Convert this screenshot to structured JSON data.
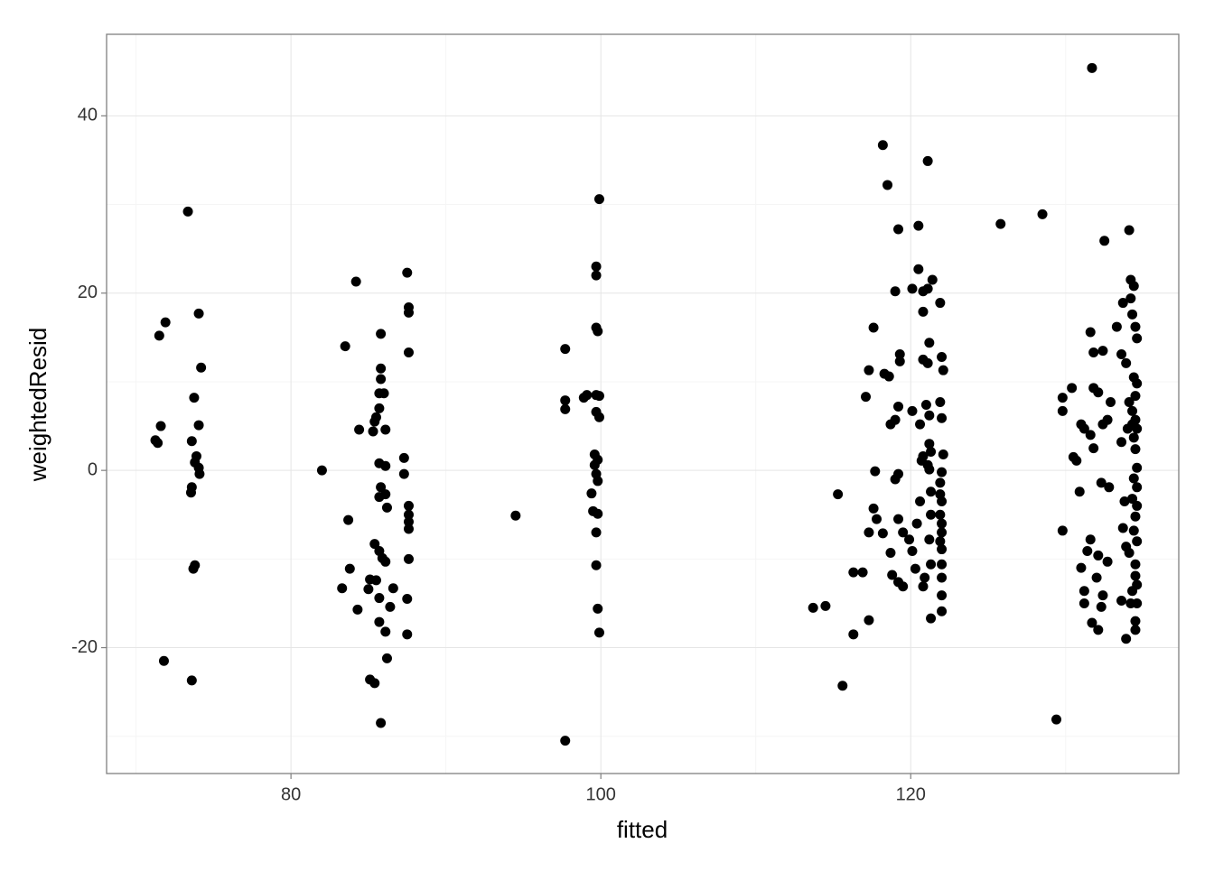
{
  "chart_data": {
    "type": "scatter",
    "x_label": "fitted",
    "y_label": "weightedResid",
    "xlim": [
      68.1,
      137.3
    ],
    "ylim": [
      -34.2,
      49.2
    ],
    "xticks": [
      80,
      100,
      120
    ],
    "yticks": [
      -20,
      0,
      20,
      40
    ],
    "x_minor_ticks": [
      70,
      90,
      110,
      130
    ],
    "y_minor_ticks": [
      -30,
      -10,
      10,
      30
    ],
    "grid": true,
    "color": "#000000",
    "x": [
      71.5,
      71.9,
      71.25,
      71.4,
      71.6,
      73.35,
      73.6,
      71.8,
      74.05,
      74.2,
      73.75,
      74.05,
      73.6,
      73.9,
      73.8,
      74.05,
      74.1,
      73.6,
      73.55,
      73.8,
      73.7,
      82.0,
      84.2,
      83.5,
      84.4,
      83.7,
      83.8,
      83.3,
      84.3,
      85.0,
      85.1,
      85.8,
      85.8,
      85.8,
      85.7,
      86.0,
      85.7,
      85.5,
      85.4,
      85.3,
      86.1,
      85.7,
      86.1,
      85.8,
      86.1,
      85.7,
      86.2,
      85.4,
      85.7,
      85.9,
      86.1,
      85.5,
      85.7,
      85.7,
      86.4,
      86.6,
      86.1,
      86.2,
      85.1,
      85.4,
      85.8,
      87.5,
      87.6,
      87.6,
      87.6,
      87.3,
      87.3,
      87.6,
      87.6,
      87.6,
      87.6,
      87.6,
      87.5,
      87.5,
      94.5,
      99.9,
      99.7,
      99.7,
      97.7,
      99.7,
      99.8,
      97.7,
      97.7,
      98.9,
      99.1,
      99.7,
      99.9,
      99.7,
      99.9,
      99.6,
      99.8,
      99.6,
      99.7,
      99.8,
      99.4,
      99.5,
      99.8,
      99.7,
      99.7,
      99.8,
      99.9,
      97.7,
      113.7,
      114.5,
      115.3,
      115.6,
      116.3,
      116.9,
      116.3,
      117.3,
      117.1,
      117.3,
      117.6,
      118.2,
      118.5,
      119.2,
      118.3,
      118.6,
      119.0,
      117.7,
      117.6,
      117.8,
      117.3,
      118.2,
      118.7,
      118.8,
      118.7,
      119.0,
      119.2,
      119.3,
      119.3,
      119.0,
      119.2,
      119.2,
      119.2,
      119.5,
      119.5,
      119.9,
      120.1,
      120.1,
      120.5,
      120.5,
      120.8,
      120.8,
      120.6,
      120.8,
      120.7,
      120.6,
      120.4,
      120.1,
      120.3,
      120.9,
      120.8,
      121.1,
      121.4,
      121.1,
      121.2,
      120.8,
      121.1,
      121.0,
      121.2,
      121.2,
      121.3,
      121.1,
      121.2,
      121.3,
      121.3,
      121.2,
      121.3,
      121.3,
      121.9,
      122.0,
      122.1,
      121.9,
      122.0,
      122.1,
      122.0,
      121.9,
      122.0,
      121.9,
      122.0,
      122.0,
      121.9,
      122.0,
      122.0,
      122.0,
      122.0,
      122.0,
      121.9,
      125.8,
      128.5,
      129.4,
      129.8,
      129.8,
      129.8,
      130.4,
      130.5,
      130.7,
      131.0,
      131.2,
      130.9,
      131.0,
      131.2,
      131.2,
      131.7,
      131.6,
      131.8,
      131.8,
      132.1,
      131.6,
      131.8,
      131.6,
      131.4,
      132.1,
      132.0,
      131.7,
      132.1,
      132.5,
      132.4,
      132.3,
      132.7,
      132.8,
      132.9,
      132.7,
      132.4,
      132.3,
      133.7,
      133.6,
      133.9,
      133.6,
      133.8,
      133.7,
      133.9,
      133.6,
      133.9,
      134.1,
      134.2,
      134.2,
      134.4,
      134.3,
      134.5,
      134.6,
      134.4,
      134.6,
      134.5,
      134.1,
      134.3,
      134.5,
      134.3,
      134.6,
      134.4,
      134.5,
      134.6,
      134.4,
      134.6,
      134.3,
      134.6,
      134.5,
      134.4,
      134.6,
      134.1,
      134.5,
      134.5,
      134.6,
      134.3,
      134.6,
      134.2,
      134.5,
      134.5,
      133.3,
      132.4,
      134.0
    ],
    "y": [
      15.2,
      16.7,
      3.4,
      3.1,
      5.0,
      29.2,
      -23.7,
      -21.5,
      17.7,
      11.6,
      8.2,
      5.1,
      3.3,
      1.6,
      0.9,
      0.3,
      -0.4,
      -1.9,
      -2.5,
      -10.7,
      -11.1,
      0.0,
      21.3,
      14.0,
      4.6,
      -5.6,
      -11.1,
      -13.3,
      -15.7,
      -13.4,
      -12.3,
      15.4,
      11.5,
      10.3,
      8.7,
      8.7,
      7.0,
      6.0,
      5.5,
      4.4,
      4.6,
      0.8,
      0.5,
      -1.9,
      -2.7,
      -3.0,
      -4.2,
      -8.3,
      -9.1,
      -9.9,
      -10.3,
      -12.4,
      -14.4,
      -17.1,
      -15.4,
      -13.3,
      -18.2,
      -21.2,
      -23.6,
      -24.0,
      -28.5,
      22.3,
      18.4,
      17.8,
      13.3,
      1.4,
      -0.4,
      -4.0,
      -5.0,
      -5.8,
      -6.6,
      -10.0,
      -14.5,
      -18.5,
      -5.1,
      30.6,
      23.0,
      22.0,
      13.7,
      16.1,
      15.7,
      7.9,
      6.9,
      8.2,
      8.5,
      8.5,
      8.4,
      6.6,
      6.0,
      1.8,
      1.2,
      0.6,
      -0.4,
      -1.2,
      -2.6,
      -4.6,
      -4.9,
      -7.0,
      -10.7,
      -15.6,
      -18.3,
      -30.5,
      -15.5,
      -15.3,
      -2.7,
      -24.3,
      -11.5,
      -11.5,
      -18.5,
      -16.9,
      8.3,
      11.3,
      16.1,
      36.7,
      32.2,
      27.2,
      10.9,
      10.6,
      20.2,
      -0.1,
      -4.3,
      -5.5,
      -7.0,
      -7.1,
      -9.3,
      -11.8,
      5.2,
      5.7,
      7.2,
      12.3,
      13.1,
      -1.0,
      -0.4,
      -5.5,
      -12.6,
      -13.1,
      -7.0,
      -7.8,
      6.7,
      20.5,
      27.6,
      22.7,
      20.2,
      17.9,
      5.2,
      1.6,
      1.1,
      -3.5,
      -6.0,
      -9.1,
      -11.1,
      -12.1,
      -13.1,
      34.9,
      21.5,
      20.5,
      14.4,
      12.5,
      12.1,
      7.4,
      6.2,
      3.0,
      2.1,
      0.6,
      0.1,
      -2.4,
      -5.0,
      -7.8,
      -10.6,
      -16.7,
      18.9,
      12.8,
      11.3,
      7.7,
      5.9,
      1.8,
      -0.2,
      -2.7,
      -3.5,
      -5.0,
      -6.0,
      -7.0,
      -8.0,
      -8.9,
      -10.6,
      -12.1,
      -14.1,
      -15.9,
      -1.4,
      27.8,
      28.9,
      -28.1,
      8.2,
      6.7,
      -6.8,
      9.3,
      1.5,
      1.1,
      5.2,
      4.7,
      -2.4,
      -11.0,
      -13.6,
      -15.0,
      45.4,
      15.6,
      13.3,
      9.3,
      8.8,
      4.0,
      2.5,
      -7.8,
      -9.1,
      -9.6,
      -12.1,
      -17.2,
      -18.0,
      25.9,
      13.5,
      -1.4,
      5.7,
      -1.9,
      7.7,
      -10.3,
      -14.1,
      -15.4,
      18.9,
      13.1,
      12.1,
      3.2,
      -3.5,
      -6.5,
      -8.6,
      -14.7,
      -19.0,
      27.1,
      21.5,
      19.4,
      20.8,
      17.6,
      16.2,
      14.9,
      10.5,
      9.8,
      8.4,
      7.7,
      6.7,
      5.7,
      5.2,
      4.7,
      3.7,
      2.4,
      0.3,
      -0.9,
      -1.9,
      -3.2,
      -4.0,
      -5.2,
      -6.8,
      -8.0,
      -9.3,
      -10.6,
      -11.9,
      -12.9,
      -13.6,
      -15.0,
      -15.0,
      -17.0,
      -18.0,
      16.2,
      5.2,
      4.7
    ]
  }
}
